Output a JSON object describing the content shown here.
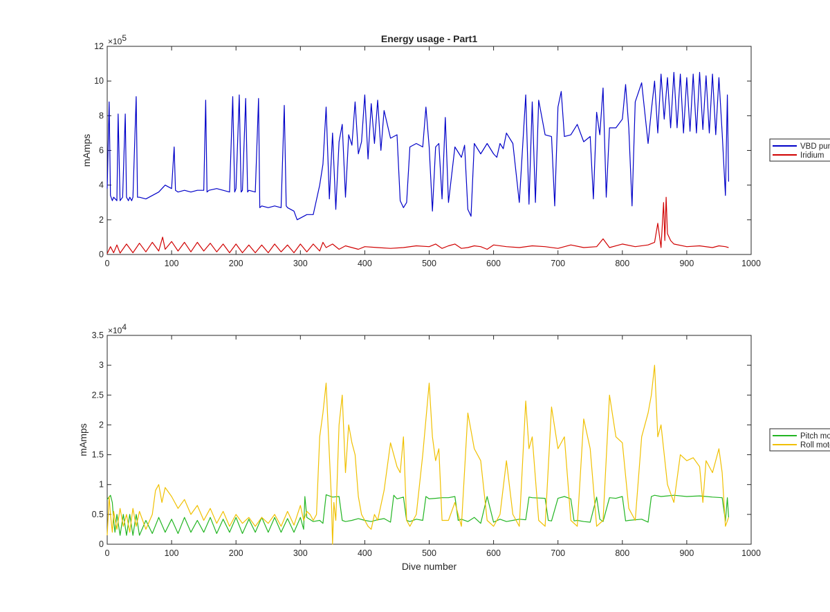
{
  "chart_data": [
    {
      "type": "line",
      "title": "Energy usage - Part1",
      "xlabel": "",
      "ylabel": "mAmps",
      "xlim": [
        0,
        1000
      ],
      "ylim": [
        0,
        1200000
      ],
      "x_ticks": [
        0,
        100,
        200,
        300,
        400,
        500,
        600,
        700,
        800,
        900,
        1000
      ],
      "y_tick_labels": [
        "0",
        "2",
        "4",
        "6",
        "8",
        "10",
        "12"
      ],
      "y_multiplier": "×10",
      "y_exponent": "5",
      "grid": false,
      "legend_position": "outside-right",
      "series": [
        {
          "name": "VBD pump",
          "color": "#0000c8",
          "x": [
            0,
            3,
            5,
            8,
            10,
            15,
            17,
            20,
            24,
            28,
            30,
            33,
            35,
            38,
            40,
            45,
            47,
            50,
            60,
            70,
            80,
            90,
            100,
            104,
            106,
            110,
            120,
            130,
            140,
            150,
            153,
            155,
            158,
            170,
            180,
            190,
            195,
            198,
            200,
            205,
            208,
            210,
            215,
            218,
            220,
            230,
            235,
            237,
            240,
            250,
            260,
            270,
            275,
            278,
            280,
            290,
            295,
            300,
            305,
            310,
            320,
            330,
            335,
            340,
            345,
            350,
            355,
            360,
            365,
            370,
            375,
            380,
            385,
            390,
            395,
            400,
            405,
            410,
            415,
            420,
            425,
            430,
            440,
            450,
            455,
            460,
            465,
            470,
            480,
            490,
            495,
            500,
            505,
            510,
            515,
            520,
            525,
            530,
            540,
            550,
            555,
            560,
            565,
            570,
            580,
            590,
            600,
            605,
            610,
            615,
            620,
            630,
            640,
            650,
            655,
            660,
            665,
            670,
            680,
            690,
            695,
            700,
            705,
            710,
            720,
            730,
            740,
            750,
            755,
            760,
            765,
            770,
            775,
            780,
            790,
            800,
            805,
            810,
            815,
            820,
            830,
            840,
            845,
            850,
            855,
            860,
            865,
            870,
            875,
            880,
            885,
            890,
            895,
            900,
            905,
            910,
            915,
            920,
            925,
            930,
            935,
            940,
            945,
            950,
            955,
            960,
            963,
            965
          ],
          "values": [
            380000,
            880000,
            340000,
            310000,
            330000,
            310000,
            810000,
            310000,
            330000,
            810000,
            330000,
            310000,
            330000,
            310000,
            330000,
            910000,
            330000,
            330000,
            320000,
            340000,
            360000,
            400000,
            380000,
            620000,
            370000,
            360000,
            370000,
            360000,
            370000,
            370000,
            890000,
            360000,
            370000,
            380000,
            370000,
            360000,
            910000,
            360000,
            380000,
            920000,
            360000,
            370000,
            900000,
            360000,
            370000,
            360000,
            900000,
            270000,
            280000,
            270000,
            280000,
            270000,
            860000,
            280000,
            270000,
            250000,
            200000,
            210000,
            220000,
            230000,
            230000,
            400000,
            520000,
            850000,
            320000,
            700000,
            260000,
            650000,
            750000,
            330000,
            690000,
            630000,
            880000,
            580000,
            650000,
            920000,
            550000,
            870000,
            640000,
            890000,
            600000,
            830000,
            670000,
            690000,
            310000,
            270000,
            300000,
            620000,
            640000,
            620000,
            850000,
            620000,
            250000,
            620000,
            640000,
            320000,
            790000,
            300000,
            620000,
            560000,
            630000,
            260000,
            220000,
            640000,
            580000,
            640000,
            580000,
            560000,
            640000,
            610000,
            700000,
            640000,
            300000,
            920000,
            290000,
            880000,
            300000,
            890000,
            690000,
            680000,
            280000,
            850000,
            940000,
            680000,
            690000,
            750000,
            650000,
            680000,
            320000,
            820000,
            690000,
            960000,
            330000,
            730000,
            730000,
            780000,
            980000,
            730000,
            280000,
            880000,
            990000,
            640000,
            830000,
            1000000,
            700000,
            1040000,
            780000,
            1020000,
            730000,
            1050000,
            730000,
            1040000,
            700000,
            1020000,
            710000,
            1040000,
            700000,
            1050000,
            720000,
            1030000,
            700000,
            1040000,
            690000,
            1020000,
            700000,
            340000,
            920000,
            420000
          ]
        },
        {
          "name": "Iridium",
          "color": "#d00000",
          "x": [
            0,
            5,
            10,
            15,
            20,
            30,
            40,
            50,
            60,
            70,
            80,
            86,
            90,
            100,
            110,
            120,
            130,
            140,
            150,
            160,
            170,
            180,
            190,
            200,
            210,
            220,
            230,
            240,
            250,
            260,
            270,
            280,
            290,
            300,
            310,
            320,
            330,
            335,
            340,
            350,
            360,
            370,
            380,
            390,
            400,
            420,
            440,
            460,
            480,
            500,
            510,
            520,
            530,
            540,
            550,
            560,
            570,
            580,
            590,
            600,
            620,
            640,
            660,
            680,
            700,
            720,
            740,
            760,
            770,
            780,
            800,
            820,
            840,
            850,
            855,
            860,
            864,
            866,
            868,
            870,
            875,
            880,
            900,
            920,
            940,
            950,
            960,
            965
          ],
          "values": [
            5000,
            45000,
            10000,
            55000,
            8000,
            60000,
            10000,
            65000,
            15000,
            70000,
            20000,
            100000,
            30000,
            75000,
            20000,
            70000,
            15000,
            70000,
            20000,
            65000,
            15000,
            60000,
            10000,
            60000,
            10000,
            55000,
            10000,
            55000,
            10000,
            60000,
            15000,
            55000,
            10000,
            60000,
            15000,
            60000,
            20000,
            70000,
            40000,
            60000,
            30000,
            50000,
            40000,
            30000,
            45000,
            40000,
            35000,
            40000,
            50000,
            45000,
            60000,
            35000,
            50000,
            60000,
            35000,
            40000,
            50000,
            45000,
            30000,
            55000,
            45000,
            40000,
            50000,
            45000,
            35000,
            55000,
            40000,
            45000,
            90000,
            40000,
            60000,
            45000,
            55000,
            70000,
            180000,
            40000,
            300000,
            80000,
            330000,
            120000,
            80000,
            60000,
            45000,
            50000,
            40000,
            50000,
            45000,
            40000
          ]
        }
      ]
    },
    {
      "type": "line",
      "title": "",
      "xlabel": "Dive number",
      "ylabel": "mAmps",
      "xlim": [
        0,
        1000
      ],
      "ylim": [
        0,
        35000
      ],
      "x_ticks": [
        0,
        100,
        200,
        300,
        400,
        500,
        600,
        700,
        800,
        900,
        1000
      ],
      "y_tick_labels": [
        "0",
        "0.5",
        "1",
        "1.5",
        "2",
        "2.5",
        "3",
        "3.5"
      ],
      "y_multiplier": "×10",
      "y_exponent": "4",
      "grid": false,
      "legend_position": "outside-right",
      "series": [
        {
          "name": "Pitch motor",
          "color": "#22b522",
          "x": [
            0,
            5,
            8,
            10,
            12,
            15,
            20,
            25,
            30,
            35,
            40,
            45,
            50,
            60,
            70,
            80,
            90,
            100,
            110,
            120,
            130,
            140,
            150,
            160,
            170,
            180,
            190,
            200,
            210,
            220,
            230,
            240,
            250,
            260,
            270,
            280,
            290,
            300,
            305,
            307,
            310,
            320,
            330,
            335,
            340,
            350,
            360,
            365,
            370,
            380,
            390,
            400,
            410,
            420,
            430,
            440,
            445,
            450,
            460,
            465,
            470,
            480,
            490,
            495,
            500,
            510,
            520,
            530,
            540,
            545,
            550,
            560,
            570,
            580,
            590,
            600,
            610,
            620,
            630,
            640,
            650,
            655,
            660,
            680,
            685,
            690,
            700,
            710,
            720,
            725,
            730,
            740,
            750,
            760,
            765,
            770,
            780,
            790,
            800,
            805,
            810,
            830,
            840,
            845,
            850,
            860,
            870,
            880,
            900,
            920,
            940,
            955,
            960,
            963,
            965
          ],
          "values": [
            7500,
            8200,
            7000,
            4000,
            2000,
            5000,
            1500,
            5000,
            1500,
            5000,
            1500,
            5000,
            1500,
            4000,
            1800,
            4500,
            2000,
            4200,
            1800,
            4500,
            2000,
            4000,
            2000,
            4500,
            1800,
            4200,
            2000,
            4500,
            1800,
            4200,
            2000,
            4500,
            2000,
            4500,
            2000,
            4300,
            2000,
            4500,
            2500,
            8000,
            4500,
            3800,
            4000,
            3500,
            8300,
            7900,
            8000,
            4000,
            3800,
            4000,
            4300,
            4000,
            3800,
            4100,
            4300,
            3700,
            8200,
            7600,
            7900,
            4000,
            3800,
            4200,
            4000,
            8000,
            7600,
            7700,
            7800,
            7800,
            8000,
            4000,
            4200,
            3800,
            4500,
            3500,
            8000,
            3700,
            4200,
            3800,
            4000,
            4200,
            4100,
            7900,
            7800,
            7700,
            4000,
            3900,
            7700,
            8000,
            7600,
            3900,
            4000,
            3800,
            3700,
            7900,
            4200,
            3800,
            7800,
            7700,
            8000,
            3900,
            4000,
            4200,
            3700,
            8000,
            8200,
            8000,
            8100,
            8200,
            8000,
            8100,
            7900,
            7800,
            3900,
            7800,
            4500
          ]
        },
        {
          "name": "Roll motor",
          "color": "#f0c000",
          "x": [
            0,
            3,
            5,
            8,
            10,
            15,
            20,
            25,
            30,
            35,
            40,
            45,
            50,
            60,
            70,
            75,
            80,
            85,
            90,
            100,
            110,
            120,
            130,
            140,
            150,
            160,
            170,
            180,
            190,
            200,
            210,
            220,
            230,
            240,
            250,
            260,
            270,
            280,
            290,
            300,
            305,
            310,
            315,
            320,
            325,
            330,
            335,
            340,
            345,
            348,
            350,
            352,
            355,
            360,
            365,
            370,
            375,
            380,
            385,
            390,
            395,
            400,
            405,
            410,
            415,
            420,
            430,
            440,
            450,
            455,
            460,
            465,
            470,
            480,
            490,
            500,
            505,
            510,
            515,
            520,
            530,
            540,
            545,
            550,
            560,
            570,
            580,
            590,
            600,
            610,
            620,
            630,
            640,
            650,
            655,
            660,
            670,
            680,
            690,
            700,
            710,
            720,
            730,
            740,
            750,
            760,
            770,
            780,
            790,
            800,
            810,
            820,
            830,
            840,
            845,
            850,
            855,
            860,
            870,
            880,
            890,
            900,
            910,
            920,
            925,
            930,
            940,
            950,
            955,
            960,
            965
          ],
          "values": [
            1500,
            8000,
            5000,
            2000,
            5500,
            2500,
            6000,
            3000,
            5000,
            2000,
            6000,
            3000,
            5500,
            2500,
            5000,
            9000,
            10000,
            7000,
            9500,
            8000,
            6000,
            7500,
            5000,
            6500,
            4000,
            6000,
            3500,
            5500,
            3000,
            5000,
            3500,
            4500,
            3000,
            4500,
            3500,
            5000,
            3000,
            5500,
            3200,
            6500,
            4000,
            5500,
            5000,
            4000,
            5000,
            18000,
            22000,
            27000,
            15000,
            8000,
            0,
            7000,
            4000,
            20000,
            25000,
            12000,
            20000,
            17000,
            15000,
            8000,
            5000,
            4000,
            3000,
            2500,
            5000,
            4000,
            9000,
            17000,
            13000,
            12000,
            18000,
            4000,
            3000,
            5000,
            15000,
            27000,
            18000,
            14000,
            16000,
            4000,
            4000,
            7000,
            5000,
            3000,
            22000,
            16000,
            14000,
            4000,
            3000,
            5000,
            14000,
            5000,
            3000,
            24000,
            16000,
            18000,
            4000,
            3000,
            23000,
            16000,
            18000,
            4000,
            3000,
            21000,
            16000,
            3000,
            4000,
            25000,
            18000,
            17000,
            6000,
            4000,
            18000,
            22000,
            25000,
            30000,
            18000,
            20000,
            10000,
            7000,
            15000,
            14000,
            14500,
            13000,
            7000,
            14000,
            12000,
            16000,
            12000,
            3000,
            4500
          ]
        }
      ]
    }
  ]
}
